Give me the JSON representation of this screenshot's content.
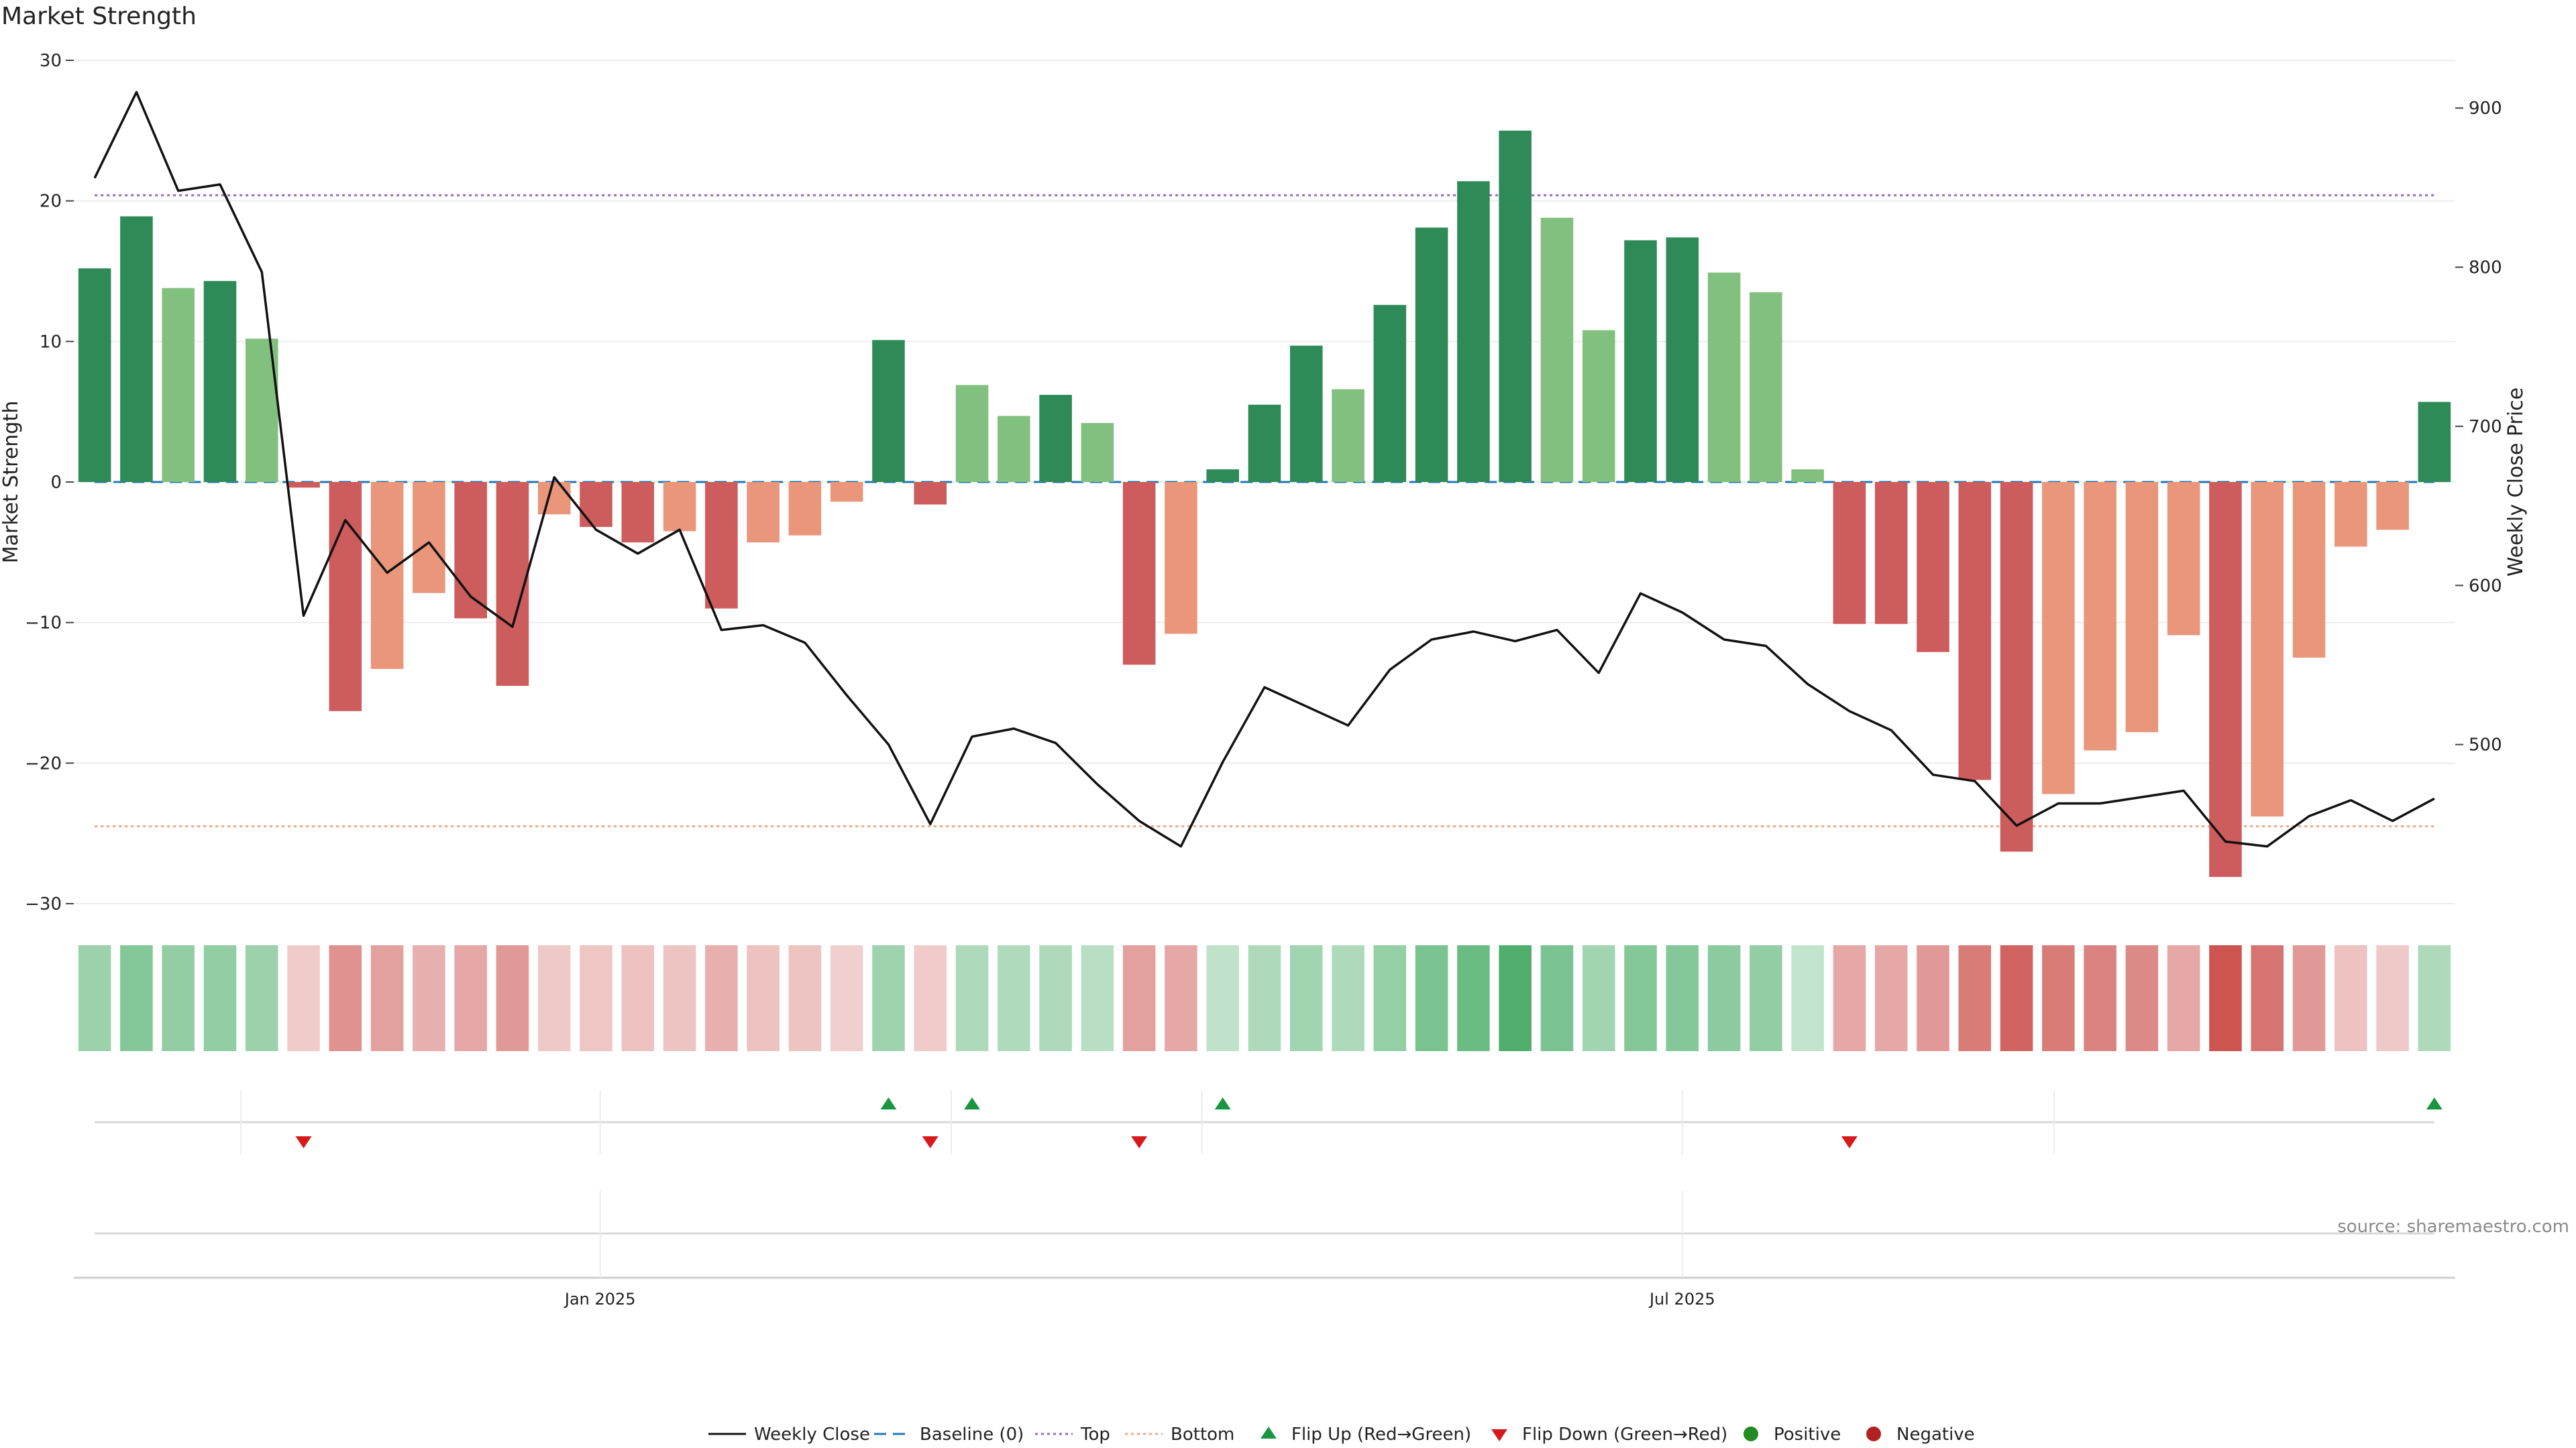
{
  "chart_data": {
    "type": "bar",
    "title": "Market Strength",
    "ylabel": "Market Strength",
    "y2label": "Weekly Close Price",
    "ylim": [
      -30,
      30
    ],
    "y2lim": [
      400,
      930
    ],
    "yticks": [
      30,
      20,
      10,
      0,
      -10,
      -20,
      -30
    ],
    "y2ticks": [
      900,
      800,
      700,
      600,
      500
    ],
    "xlabels": [
      {
        "label": "Jan 2025",
        "week": 12.6
      },
      {
        "label": "Jul 2025",
        "week": 38.5
      }
    ],
    "top_level": 20.4,
    "bottom_level": -24.5,
    "strength": [
      15.2,
      18.9,
      13.8,
      14.3,
      10.2,
      -0.4,
      -16.3,
      -13.3,
      -7.9,
      -9.7,
      -14.5,
      -2.3,
      -3.2,
      -4.3,
      -3.5,
      -9.0,
      -4.3,
      -3.8,
      -1.4,
      10.1,
      -1.6,
      6.9,
      4.7,
      6.2,
      4.2,
      -13.0,
      -10.8,
      0.9,
      5.5,
      9.7,
      6.6,
      12.6,
      18.1,
      21.4,
      25.0,
      18.8,
      10.8,
      17.2,
      17.4,
      14.9,
      13.5,
      0.9,
      -10.1,
      -10.1,
      -12.1,
      -21.2,
      -26.3,
      -22.2,
      -19.1,
      -17.8,
      -10.9,
      -28.1,
      -23.8,
      -12.5,
      -4.6,
      -3.4,
      5.7
    ],
    "strong_flag": [
      1,
      1,
      0,
      1,
      0,
      1,
      1,
      0,
      0,
      1,
      1,
      0,
      1,
      1,
      0,
      1,
      0,
      0,
      0,
      1,
      1,
      0,
      0,
      1,
      0,
      1,
      0,
      1,
      1,
      1,
      0,
      1,
      1,
      1,
      1,
      0,
      0,
      1,
      1,
      0,
      0,
      0,
      1,
      1,
      1,
      1,
      1,
      0,
      0,
      0,
      0,
      1,
      0,
      0,
      0,
      0,
      1
    ],
    "weekly_close": [
      856,
      910,
      848,
      852,
      797,
      581,
      641,
      608,
      627,
      593,
      574,
      668,
      635,
      620,
      635,
      572,
      575,
      564,
      531,
      500,
      450,
      505,
      510,
      501,
      475,
      452,
      436,
      489,
      536,
      524,
      512,
      547,
      566,
      571,
      565,
      572,
      545,
      595,
      583,
      566,
      562,
      538,
      521,
      509,
      481,
      477,
      449,
      463,
      463,
      467,
      471,
      439,
      436,
      455,
      465,
      452,
      466
    ],
    "heat_strip": [
      0.37,
      0.5,
      0.42,
      0.42,
      0.37,
      -0.12,
      -0.5,
      -0.4,
      -0.3,
      -0.35,
      -0.45,
      -0.14,
      -0.16,
      -0.18,
      -0.17,
      -0.31,
      -0.18,
      -0.17,
      -0.1,
      0.34,
      -0.12,
      0.25,
      0.24,
      0.25,
      0.2,
      -0.4,
      -0.35,
      0.15,
      0.25,
      0.33,
      0.26,
      0.4,
      0.55,
      0.65,
      0.8,
      0.55,
      0.33,
      0.5,
      0.5,
      0.45,
      0.42,
      0.14,
      -0.35,
      -0.35,
      -0.45,
      -0.65,
      -0.8,
      -0.65,
      -0.6,
      -0.55,
      -0.35,
      -0.9,
      -0.7,
      -0.45,
      -0.18,
      -0.14,
      0.25
    ],
    "flip_up_weeks": [
      19,
      21,
      27,
      56
    ],
    "flip_down_weeks": [
      5,
      20,
      25,
      42
    ],
    "legend": [
      "Weekly Close",
      "Baseline (0)",
      "Top",
      "Bottom",
      "Flip Up (Red→Green)",
      "Flip Down (Green→Red)",
      "Positive",
      "Negative"
    ]
  },
  "colors": {
    "strong_positive": "#2e8b57",
    "weak_positive": "#82c07f",
    "strong_negative": "#cd5c5c",
    "weak_negative": "#e9967a",
    "top_line": "#9467bd",
    "bottom_line": "#f4a582",
    "baseline": "#1f77b4",
    "close_line": "#111111",
    "flip_up": "#1a9641",
    "flip_down": "#d7191c",
    "legend_positive": "#228b22",
    "legend_negative": "#b22222"
  },
  "source": "source: sharemaestro.com"
}
